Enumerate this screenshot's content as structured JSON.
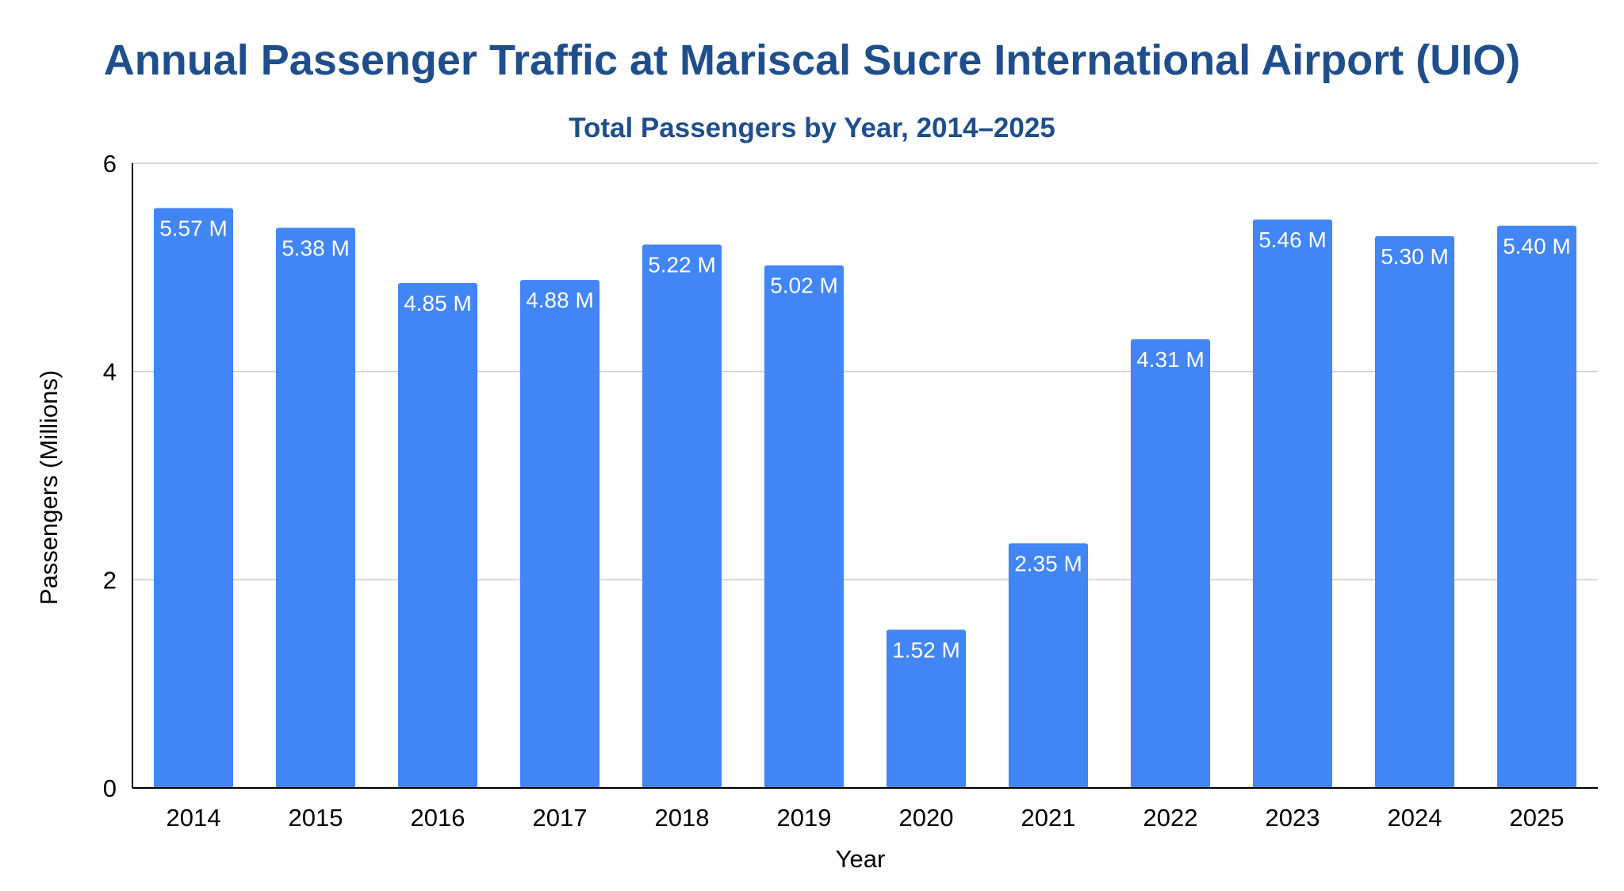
{
  "chart_data": {
    "type": "bar",
    "title": "Annual Passenger Traffic at Mariscal Sucre International Airport (UIO)",
    "subtitle": "Total Passengers by Year, 2014–2025",
    "xlabel": "Year",
    "ylabel": "Passengers (Millions)",
    "ylim": [
      0,
      6
    ],
    "yticks": [
      0,
      2,
      4,
      6
    ],
    "grid": true,
    "categories": [
      "2014",
      "2015",
      "2016",
      "2017",
      "2018",
      "2019",
      "2020",
      "2021",
      "2022",
      "2023",
      "2024",
      "2025"
    ],
    "values": [
      5.57,
      5.38,
      4.85,
      4.88,
      5.22,
      5.02,
      1.52,
      2.35,
      4.31,
      5.46,
      5.3,
      5.4
    ],
    "data_labels": [
      "5.57 M",
      "5.38 M",
      "4.85 M",
      "4.88 M",
      "5.22 M",
      "5.02 M",
      "1.52 M",
      "2.35 M",
      "4.31 M",
      "5.46 M",
      "5.30 M",
      "5.40 M"
    ],
    "bar_color": "#4285f4",
    "title_color": "#1f4e8c"
  }
}
